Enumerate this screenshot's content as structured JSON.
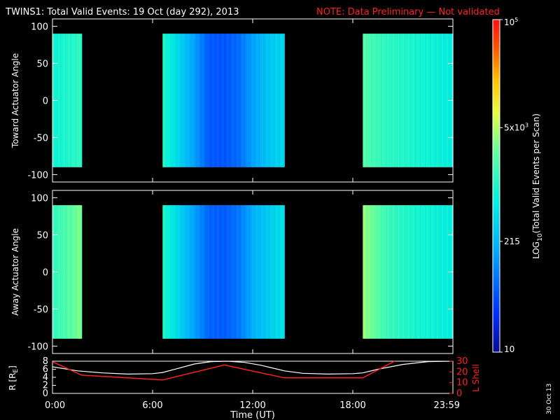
{
  "title": "TWINS1: Total Valid Events: 19 Oct (day 292), 2013",
  "note": "NOTE: Data Preliminary — Not validated",
  "date_stamp": "30 Oct 13",
  "colors": {
    "background": "#000000",
    "axes": "#ffffff",
    "note": "#ff2020",
    "r_line": "#ffffff",
    "l_line": "#ff2020"
  },
  "chart_data": [
    {
      "type": "heatmap",
      "ylabel": "Toward Actuator Angle",
      "ylim": [
        -110,
        110
      ],
      "yticks": [
        100,
        50,
        0,
        -50,
        -100
      ],
      "ytick_labels": [
        "100",
        "50",
        "0",
        "-50",
        "-100"
      ],
      "angle_range": [
        -90,
        90
      ],
      "xlim": [
        0,
        24
      ],
      "data_intervals": [
        {
          "start": 0.0,
          "end": 1.75,
          "level": [
            2.9,
            3.1
          ]
        },
        {
          "start": 6.6,
          "end": 13.9,
          "level": [
            3.0,
            2.6,
            2.2,
            1.75,
            1.7,
            1.85,
            2.2,
            2.45,
            2.6
          ]
        },
        {
          "start": 18.6,
          "end": 24.0,
          "level": [
            3.3,
            3.1,
            3.0,
            2.9,
            2.8
          ]
        }
      ]
    },
    {
      "type": "heatmap",
      "ylabel": "Away Actuator Angle",
      "ylim": [
        -110,
        110
      ],
      "yticks": [
        100,
        50,
        0,
        -50,
        -100
      ],
      "ytick_labels": [
        "100",
        "50",
        "0",
        "-50",
        "-100"
      ],
      "angle_range": [
        -90,
        90
      ],
      "xlim": [
        0,
        24
      ],
      "data_intervals": [
        {
          "start": 0.0,
          "end": 1.75,
          "level": [
            3.1,
            3.3,
            3.5
          ]
        },
        {
          "start": 6.6,
          "end": 13.9,
          "level": [
            3.0,
            2.6,
            2.2,
            1.8,
            1.75,
            1.9,
            2.3,
            2.5,
            2.7
          ]
        },
        {
          "start": 18.6,
          "end": 24.0,
          "level": [
            3.6,
            3.2,
            3.0,
            2.9,
            2.8
          ]
        }
      ]
    },
    {
      "type": "line",
      "ylabel": "R [R",
      "ylabel_sub": "E",
      "ylabel_close": "]",
      "ylim": [
        0,
        8
      ],
      "yticks": [
        0,
        2,
        4,
        6,
        8
      ],
      "ytick_labels": [
        "0",
        "2",
        "4",
        "6",
        "8"
      ],
      "y2label": "L Shell",
      "y2lim": [
        0,
        30
      ],
      "y2ticks": [
        0,
        10,
        20,
        30
      ],
      "y2tick_labels": [
        "0",
        "10",
        "20",
        "30"
      ],
      "xlabel": "Time (UT)",
      "xlim": [
        0,
        24
      ],
      "xticks": [
        0,
        6,
        12,
        18,
        24
      ],
      "xtick_labels": [
        "0:00",
        "6:00",
        "12:00",
        "18:00",
        "23:59"
      ],
      "series": [
        {
          "axis": "left",
          "x": [
            0.0,
            1.5,
            3.0,
            4.5,
            6.0,
            6.6,
            7.5,
            8.5,
            9.5,
            10.5,
            11.5,
            12.5,
            13.5,
            13.9,
            15.0,
            16.5,
            18.0,
            18.6,
            19.5,
            21.0,
            22.5,
            24.0
          ],
          "y": [
            6.6,
            5.6,
            5.1,
            4.8,
            4.9,
            5.2,
            6.2,
            7.3,
            7.9,
            8.0,
            7.7,
            7.0,
            6.0,
            5.6,
            5.0,
            4.8,
            4.9,
            5.1,
            6.0,
            7.2,
            7.9,
            8.0
          ]
        },
        {
          "axis": "right",
          "x": [
            0.0,
            1.75,
            6.6,
            10.3,
            13.9,
            18.6,
            20.5
          ],
          "y": [
            29.5,
            17.0,
            12.5,
            26.5,
            14.5,
            14.5,
            30.0
          ]
        }
      ]
    }
  ],
  "colorbar": {
    "label": "LOG",
    "label_sub": "10",
    "label_rest": "(Total Valid Events per Scan)",
    "range_log": [
      1,
      5
    ],
    "ticks": [
      {
        "value": 5,
        "main": "10",
        "sup": "5"
      },
      {
        "value": 3.699,
        "main": "5x10",
        "sup": "3"
      },
      {
        "value": 2.332,
        "main": "215",
        "sup": ""
      },
      {
        "value": 1,
        "main": "10",
        "sup": ""
      }
    ]
  }
}
